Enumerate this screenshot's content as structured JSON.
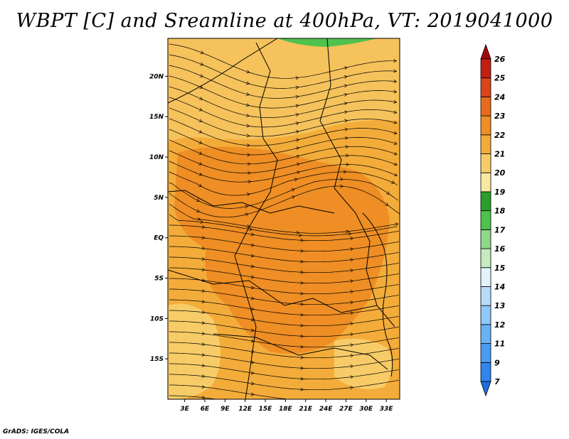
{
  "chart_data": {
    "type": "heatmap",
    "title": "WBPT [C] and Sreamline at 400hPa, VT: 2019041000",
    "variable": "WBPT [C]",
    "overlay": "Sreamline",
    "level": "400hPa",
    "valid_time": "2019041000",
    "x_ticks": [
      {
        "value": 3,
        "label": "3E"
      },
      {
        "value": 6,
        "label": "6E"
      },
      {
        "value": 9,
        "label": "9E"
      },
      {
        "value": 12,
        "label": "12E"
      },
      {
        "value": 15,
        "label": "15E"
      },
      {
        "value": 18,
        "label": "18E"
      },
      {
        "value": 21,
        "label": "21E"
      },
      {
        "value": 24,
        "label": "24E"
      },
      {
        "value": 27,
        "label": "27E"
      },
      {
        "value": 30,
        "label": "30E"
      },
      {
        "value": 33,
        "label": "33E"
      }
    ],
    "y_ticks": [
      {
        "value": 20,
        "label": "20N"
      },
      {
        "value": 15,
        "label": "15N"
      },
      {
        "value": 10,
        "label": "10N"
      },
      {
        "value": 5,
        "label": "5N"
      },
      {
        "value": 0,
        "label": "EQ"
      },
      {
        "value": -5,
        "label": "5S"
      },
      {
        "value": -10,
        "label": "10S"
      },
      {
        "value": -15,
        "label": "15S"
      }
    ],
    "xlim": [
      0.5,
      35
    ],
    "ylim": [
      -20,
      24.7
    ],
    "colorbar": {
      "labels": [
        "7",
        "9",
        "11",
        "12",
        "13",
        "14",
        "15",
        "16",
        "17",
        "18",
        "19",
        "20",
        "21",
        "22",
        "23",
        "24",
        "25",
        "26"
      ],
      "colors": [
        "#1e6ee0",
        "#2f86ec",
        "#4a9cf2",
        "#6ab2f6",
        "#8fc8f9",
        "#b7dcfb",
        "#e2f4fb",
        "#c5ecbc",
        "#8ed88a",
        "#4fc24d",
        "#2b9e2c",
        "#f8e9a0",
        "#f7cc68",
        "#f3ac3a",
        "#ee8e24",
        "#e86b1c",
        "#d8461a",
        "#c21f14",
        "#a5080c"
      ]
    },
    "regions": [
      {
        "name": "north-band",
        "value": 20.5,
        "color": "#f5c25c"
      },
      {
        "name": "green-patch",
        "value": 17.5,
        "color": "#4fc24d"
      },
      {
        "name": "central-warm-core",
        "value": 22.5,
        "color": "#ee8e24"
      },
      {
        "name": "east-core",
        "value": 22.5,
        "color": "#ee8e24"
      },
      {
        "name": "southwest-edge",
        "value": 20,
        "color": "#f7cc68"
      }
    ]
  },
  "footer": "GrADS: IGES/COLA"
}
